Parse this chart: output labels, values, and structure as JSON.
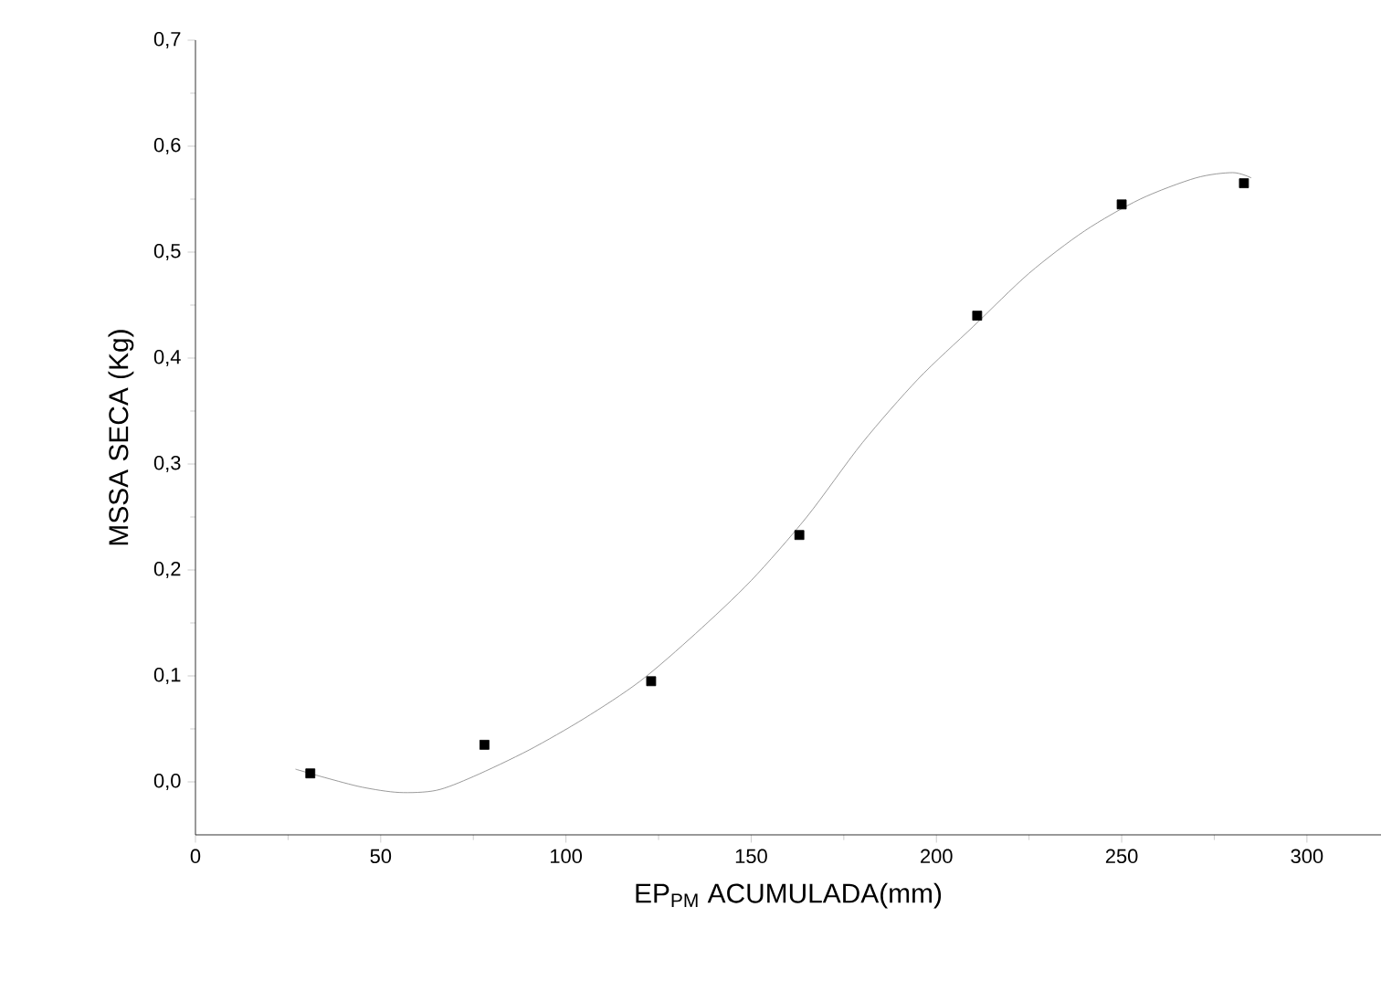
{
  "chart_data": {
    "type": "scatter",
    "xlabel": "EP$_{PM}$ ACUMULADA(mm)",
    "ylabel": "MSSA SECA (Kg)",
    "xlim": [
      0,
      320
    ],
    "ylim": [
      -0.05,
      0.7
    ],
    "xticks": [
      0,
      50,
      100,
      150,
      200,
      250,
      300
    ],
    "yticks": [
      {
        "value": 0,
        "label": "0,0"
      },
      {
        "value": 0.1,
        "label": "0,1"
      },
      {
        "value": 0.2,
        "label": "0,2"
      },
      {
        "value": 0.3,
        "label": "0,3"
      },
      {
        "value": 0.4,
        "label": "0,4"
      },
      {
        "value": 0.5,
        "label": "0,5"
      },
      {
        "value": 0.6,
        "label": "0,6"
      },
      {
        "value": 0.7,
        "label": "0,7"
      }
    ],
    "grid": false,
    "series": [
      {
        "marker": "square",
        "color": "#000000",
        "x": [
          31,
          78,
          123,
          163,
          211,
          250,
          283
        ],
        "values": [
          0.008,
          0.035,
          0.095,
          0.233,
          0.44,
          0.545,
          0.565
        ]
      },
      {
        "type": "line",
        "marker": "none",
        "color": "#808080",
        "x": [
          27,
          35,
          45,
          55,
          65,
          75,
          90,
          105,
          120,
          135,
          150,
          165,
          180,
          195,
          210,
          225,
          240,
          255,
          270,
          280,
          285
        ],
        "values": [
          0.012,
          0.004,
          -0.005,
          -0.01,
          -0.008,
          0.005,
          0.03,
          0.06,
          0.095,
          0.14,
          0.19,
          0.25,
          0.32,
          0.38,
          0.43,
          0.48,
          0.52,
          0.55,
          0.57,
          0.575,
          0.57
        ]
      }
    ]
  }
}
